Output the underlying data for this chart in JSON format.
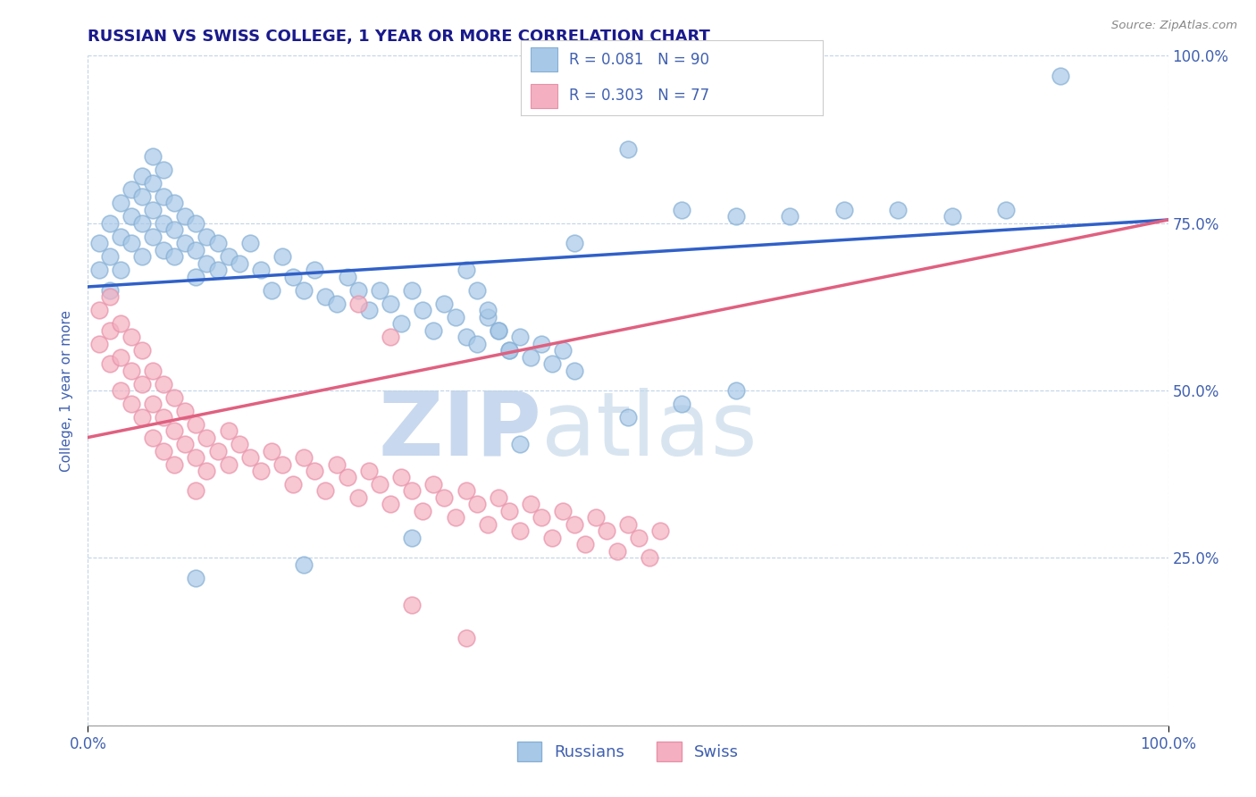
{
  "title": "RUSSIAN VS SWISS COLLEGE, 1 YEAR OR MORE CORRELATION CHART",
  "source_text": "Source: ZipAtlas.com",
  "ylabel": "College, 1 year or more",
  "xlim": [
    0.0,
    1.0
  ],
  "ylim": [
    0.0,
    1.0
  ],
  "ytick_right_labels": [
    "25.0%",
    "50.0%",
    "75.0%",
    "100.0%"
  ],
  "ytick_right_values": [
    0.25,
    0.5,
    0.75,
    1.0
  ],
  "title_color": "#1a1a8c",
  "axis_label_color": "#4060b0",
  "tick_label_color": "#4060b0",
  "watermark_text": "ZIPatlas",
  "watermark_color": "#dce8f5",
  "russian_color": "#a8c8e8",
  "swiss_color": "#f4b0c0",
  "russian_line_color": "#3060c8",
  "swiss_line_color": "#e06080",
  "grid_color": "#c0d4e8",
  "background_color": "#ffffff",
  "russian_line_x0": 0.0,
  "russian_line_y0": 0.655,
  "russian_line_x1": 1.0,
  "russian_line_y1": 0.755,
  "swiss_line_x0": 0.0,
  "swiss_line_y0": 0.43,
  "swiss_line_x1": 1.0,
  "swiss_line_y1": 0.755,
  "russians_x": [
    0.01,
    0.01,
    0.02,
    0.02,
    0.02,
    0.03,
    0.03,
    0.03,
    0.04,
    0.04,
    0.04,
    0.05,
    0.05,
    0.05,
    0.05,
    0.06,
    0.06,
    0.06,
    0.06,
    0.07,
    0.07,
    0.07,
    0.07,
    0.08,
    0.08,
    0.08,
    0.09,
    0.09,
    0.1,
    0.1,
    0.1,
    0.11,
    0.11,
    0.12,
    0.12,
    0.13,
    0.14,
    0.15,
    0.16,
    0.17,
    0.18,
    0.19,
    0.2,
    0.21,
    0.22,
    0.23,
    0.24,
    0.25,
    0.26,
    0.27,
    0.28,
    0.29,
    0.3,
    0.31,
    0.32,
    0.33,
    0.34,
    0.35,
    0.36,
    0.37,
    0.38,
    0.39,
    0.4,
    0.41,
    0.42,
    0.43,
    0.44,
    0.45,
    0.35,
    0.36,
    0.37,
    0.38,
    0.39,
    0.45,
    0.5,
    0.55,
    0.6,
    0.65,
    0.7,
    0.75,
    0.8,
    0.85,
    0.9,
    0.55,
    0.6,
    0.5,
    0.4,
    0.3,
    0.2,
    0.1
  ],
  "russians_y": [
    0.72,
    0.68,
    0.75,
    0.7,
    0.65,
    0.78,
    0.73,
    0.68,
    0.8,
    0.76,
    0.72,
    0.82,
    0.79,
    0.75,
    0.7,
    0.85,
    0.81,
    0.77,
    0.73,
    0.83,
    0.79,
    0.75,
    0.71,
    0.78,
    0.74,
    0.7,
    0.76,
    0.72,
    0.75,
    0.71,
    0.67,
    0.73,
    0.69,
    0.72,
    0.68,
    0.7,
    0.69,
    0.72,
    0.68,
    0.65,
    0.7,
    0.67,
    0.65,
    0.68,
    0.64,
    0.63,
    0.67,
    0.65,
    0.62,
    0.65,
    0.63,
    0.6,
    0.65,
    0.62,
    0.59,
    0.63,
    0.61,
    0.58,
    0.57,
    0.61,
    0.59,
    0.56,
    0.58,
    0.55,
    0.57,
    0.54,
    0.56,
    0.53,
    0.68,
    0.65,
    0.62,
    0.59,
    0.56,
    0.72,
    0.86,
    0.77,
    0.76,
    0.76,
    0.77,
    0.77,
    0.76,
    0.77,
    0.97,
    0.48,
    0.5,
    0.46,
    0.42,
    0.28,
    0.24,
    0.22
  ],
  "swiss_x": [
    0.01,
    0.01,
    0.02,
    0.02,
    0.02,
    0.03,
    0.03,
    0.03,
    0.04,
    0.04,
    0.04,
    0.05,
    0.05,
    0.05,
    0.06,
    0.06,
    0.06,
    0.07,
    0.07,
    0.07,
    0.08,
    0.08,
    0.08,
    0.09,
    0.09,
    0.1,
    0.1,
    0.1,
    0.11,
    0.11,
    0.12,
    0.13,
    0.13,
    0.14,
    0.15,
    0.16,
    0.17,
    0.18,
    0.19,
    0.2,
    0.21,
    0.22,
    0.23,
    0.24,
    0.25,
    0.26,
    0.27,
    0.28,
    0.29,
    0.3,
    0.31,
    0.32,
    0.33,
    0.34,
    0.35,
    0.36,
    0.37,
    0.38,
    0.39,
    0.4,
    0.41,
    0.42,
    0.43,
    0.44,
    0.45,
    0.46,
    0.47,
    0.48,
    0.49,
    0.5,
    0.51,
    0.52,
    0.53,
    0.25,
    0.28,
    0.3,
    0.35
  ],
  "swiss_y": [
    0.62,
    0.57,
    0.64,
    0.59,
    0.54,
    0.6,
    0.55,
    0.5,
    0.58,
    0.53,
    0.48,
    0.56,
    0.51,
    0.46,
    0.53,
    0.48,
    0.43,
    0.51,
    0.46,
    0.41,
    0.49,
    0.44,
    0.39,
    0.47,
    0.42,
    0.45,
    0.4,
    0.35,
    0.43,
    0.38,
    0.41,
    0.44,
    0.39,
    0.42,
    0.4,
    0.38,
    0.41,
    0.39,
    0.36,
    0.4,
    0.38,
    0.35,
    0.39,
    0.37,
    0.34,
    0.38,
    0.36,
    0.33,
    0.37,
    0.35,
    0.32,
    0.36,
    0.34,
    0.31,
    0.35,
    0.33,
    0.3,
    0.34,
    0.32,
    0.29,
    0.33,
    0.31,
    0.28,
    0.32,
    0.3,
    0.27,
    0.31,
    0.29,
    0.26,
    0.3,
    0.28,
    0.25,
    0.29,
    0.63,
    0.58,
    0.18,
    0.13
  ]
}
